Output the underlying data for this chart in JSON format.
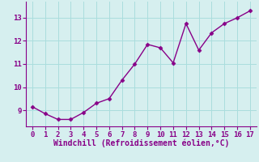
{
  "x": [
    0,
    1,
    2,
    3,
    4,
    5,
    6,
    7,
    8,
    9,
    10,
    11,
    12,
    13,
    14,
    15,
    16,
    17
  ],
  "y": [
    9.15,
    8.85,
    8.6,
    8.6,
    8.9,
    9.3,
    9.5,
    10.3,
    11.0,
    11.85,
    11.7,
    11.05,
    12.75,
    11.6,
    12.35,
    12.75,
    13.0,
    13.3
  ],
  "line_color": "#880088",
  "marker": "D",
  "marker_size": 2.5,
  "bg_color": "#d6efef",
  "grid_color": "#aadddd",
  "xlabel": "Windchill (Refroidissement éolien,°C)",
  "xlabel_color": "#880088",
  "xlabel_fontsize": 7.0,
  "tick_color": "#880088",
  "tick_fontsize": 6.5,
  "ylim": [
    8.3,
    13.7
  ],
  "xlim": [
    -0.5,
    17.5
  ],
  "yticks": [
    9,
    10,
    11,
    12,
    13
  ],
  "xticks": [
    0,
    1,
    2,
    3,
    4,
    5,
    6,
    7,
    8,
    9,
    10,
    11,
    12,
    13,
    14,
    15,
    16,
    17
  ],
  "linewidth": 1.0
}
